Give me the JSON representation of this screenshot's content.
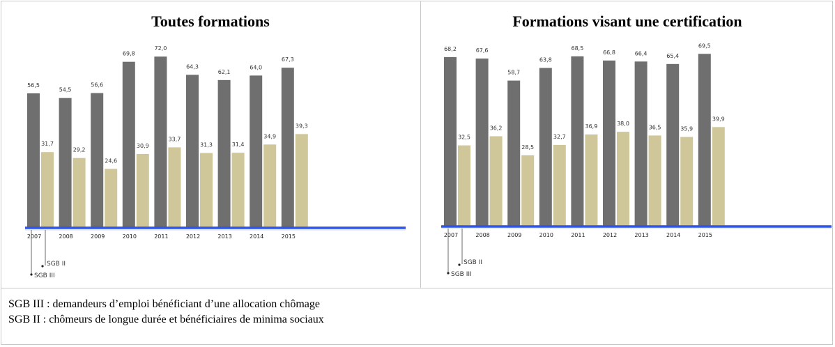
{
  "colors": {
    "sgb3_bar": "#6f6f6f",
    "sgb2_bar": "#cfc79a",
    "baseline": "#2f56e6"
  },
  "chart_data": [
    {
      "type": "bar",
      "title": "Toutes formations",
      "categories": [
        "2007",
        "2008",
        "2009",
        "2010",
        "2011",
        "2012",
        "2013",
        "2014",
        "2015"
      ],
      "series": [
        {
          "name": "SGB III",
          "values": [
            56.5,
            54.5,
            56.6,
            69.8,
            72.0,
            64.3,
            62.1,
            64.0,
            67.3
          ],
          "labels": [
            "56,5",
            "54,5",
            "56,6",
            "69,8",
            "72,0",
            "64,3",
            "62,1",
            "64,0",
            "67,3"
          ]
        },
        {
          "name": "SGB II",
          "values": [
            31.7,
            29.2,
            24.6,
            30.9,
            33.7,
            31.3,
            31.4,
            34.9,
            39.3
          ],
          "labels": [
            "31,7",
            "29,2",
            "24,6",
            "30,9",
            "33,7",
            "31,3",
            "31,4",
            "34,9",
            "39,3"
          ]
        }
      ],
      "ylim": [
        0,
        75
      ],
      "grid": false,
      "legend": "callouts below first bars"
    },
    {
      "type": "bar",
      "title": "Formations visant une certification",
      "categories": [
        "2007",
        "2008",
        "2009",
        "2010",
        "2011",
        "2012",
        "2013",
        "2014",
        "2015"
      ],
      "series": [
        {
          "name": "SGB III",
          "values": [
            68.2,
            67.6,
            58.7,
            63.8,
            68.5,
            66.8,
            66.4,
            65.4,
            69.5
          ],
          "labels": [
            "68,2",
            "67,6",
            "58,7",
            "63,8",
            "68,5",
            "66,8",
            "66,4",
            "65,4",
            "69,5"
          ]
        },
        {
          "name": "SGB II",
          "values": [
            32.5,
            36.2,
            28.5,
            32.7,
            36.9,
            38.0,
            36.5,
            35.9,
            39.9
          ],
          "labels": [
            "32,5",
            "36,2",
            "28,5",
            "32,7",
            "36,9",
            "38,0",
            "36,5",
            "35,9",
            "39,9"
          ]
        }
      ],
      "ylim": [
        0,
        75
      ],
      "grid": false,
      "legend": "callouts below first bars"
    }
  ],
  "footnotes": {
    "sgb3": "SGB III : demandeurs d’emploi bénéficiant d’une allocation chômage",
    "sgb2": "SGB II : chômeurs de longue durée et bénéficiaires de minima sociaux"
  }
}
